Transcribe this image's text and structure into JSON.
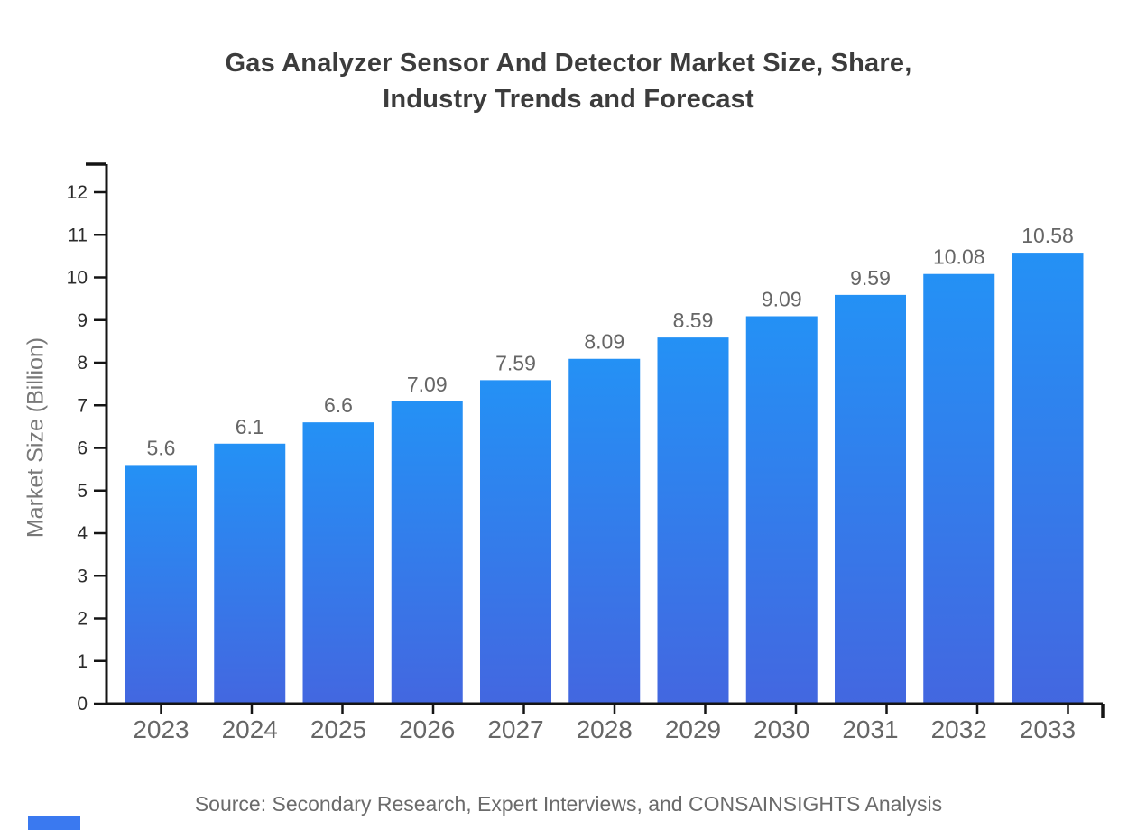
{
  "page": {
    "title_lines": [
      "Gas Analyzer Sensor And Detector Market Size, Share,",
      "Industry Trends and Forecast"
    ],
    "source_note": "Source: Secondary Research, Expert Interviews, and CONSAINSIGHTS Analysis"
  },
  "chart_data": {
    "type": "bar",
    "title": "Gas Analyzer Sensor And Detector Market Size, Share, Industry Trends and Forecast",
    "categories": [
      "2023",
      "2024",
      "2025",
      "2026",
      "2027",
      "2028",
      "2029",
      "2030",
      "2031",
      "2032",
      "2033"
    ],
    "values": [
      5.6,
      6.1,
      6.6,
      7.09,
      7.59,
      8.09,
      8.59,
      9.09,
      9.59,
      10.08,
      10.58
    ],
    "value_labels": [
      "5.6",
      "6.1",
      "6.6",
      "7.09",
      "7.59",
      "8.09",
      "8.59",
      "9.09",
      "9.59",
      "10.08",
      "10.58"
    ],
    "xlabel": "",
    "ylabel": "Market Size (Billion)",
    "ylim": [
      0,
      12
    ],
    "ytick_interval": 1,
    "yticks": [
      0,
      1,
      2,
      3,
      4,
      5,
      6,
      7,
      8,
      9,
      10,
      11,
      12
    ],
    "grid": false,
    "legend_position": "none",
    "source": "Source: Secondary Research, Expert Interviews, and CONSAINSIGHTS Analysis",
    "colors": {
      "bar_gradient_top": "#2491f5",
      "bar_gradient_bottom": "#4367e0",
      "axis": "#141414",
      "y_tick_label": "#2b2b2b",
      "category_label": "#666666",
      "value_label": "#666666",
      "title": "#3c3c3c",
      "axis_title": "#787878",
      "source": "#6b6b6b",
      "brand": "#3a79f0"
    }
  }
}
